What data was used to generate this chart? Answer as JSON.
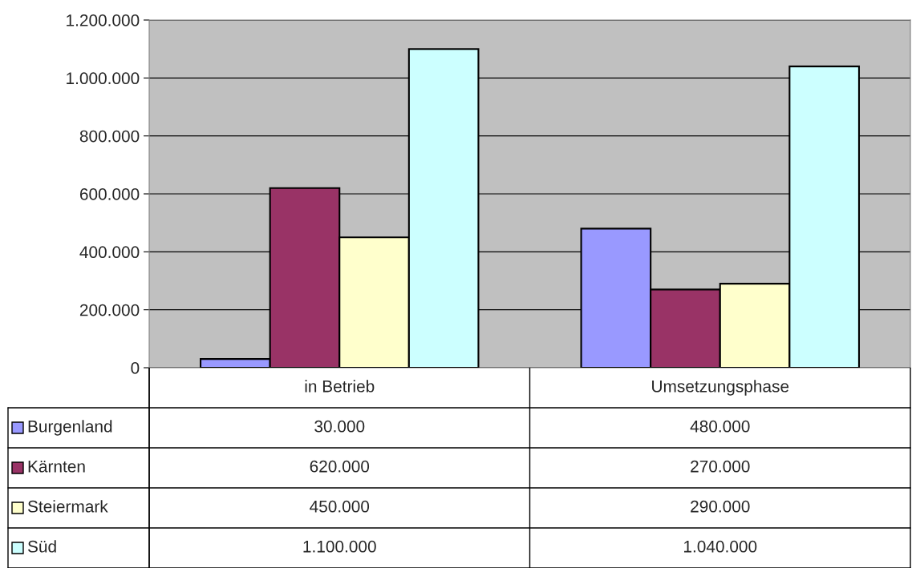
{
  "chart_data": {
    "type": "bar",
    "categories": [
      "in Betrieb",
      "Umsetzungsphase"
    ],
    "series": [
      {
        "name": "Burgenland",
        "color": "#9999ff",
        "values": [
          30000,
          480000
        ],
        "value_labels": [
          "30.000",
          "480.000"
        ]
      },
      {
        "name": "Kärnten",
        "color": "#993366",
        "values": [
          620000,
          270000
        ],
        "value_labels": [
          "620.000",
          "270.000"
        ]
      },
      {
        "name": "Steiermark",
        "color": "#ffffcc",
        "values": [
          450000,
          290000
        ],
        "value_labels": [
          "450.000",
          "290.000"
        ]
      },
      {
        "name": "Süd",
        "color": "#ccffff",
        "values": [
          1100000,
          1040000
        ],
        "value_labels": [
          "1.100.000",
          "1.040.000"
        ]
      }
    ],
    "ylim": [
      0,
      1200000
    ],
    "yticks": [
      0,
      {
        "value": 200000,
        "label": "200.000"
      },
      {
        "value": 400000,
        "label": "400.000"
      },
      {
        "value": 600000,
        "label": "600.000"
      },
      {
        "value": 800000,
        "label": "800.000"
      },
      {
        "value": 1000000,
        "label": "1.000.000"
      },
      {
        "value": 1200000,
        "label": "1.200.000"
      }
    ],
    "grid": "y",
    "legend": "bottom"
  }
}
